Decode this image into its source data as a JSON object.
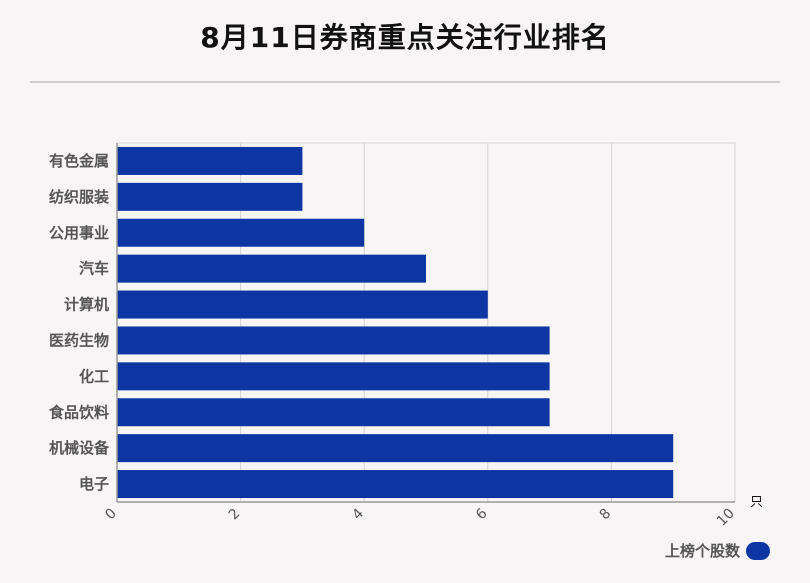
{
  "title": "8月11日券商重点关注行业排名",
  "colors": {
    "bar": "#0d36a2",
    "grid": "#d4d4d4",
    "axis": "#999999"
  },
  "chart_data": {
    "type": "bar",
    "orientation": "horizontal",
    "categories": [
      "有色金属",
      "纺织服装",
      "公用事业",
      "汽车",
      "计算机",
      "医药生物",
      "化工",
      "食品饮料",
      "机械设备",
      "电子"
    ],
    "series": [
      {
        "name": "上榜个股数",
        "values": [
          3,
          3,
          4,
          5,
          6,
          7,
          7,
          7,
          9,
          9
        ]
      }
    ],
    "xlim": [
      0,
      10
    ],
    "xticks": [
      "0",
      "2",
      "4",
      "6",
      "8",
      "10"
    ],
    "xunit": "只",
    "grid": true,
    "legend": "bottom-right"
  }
}
